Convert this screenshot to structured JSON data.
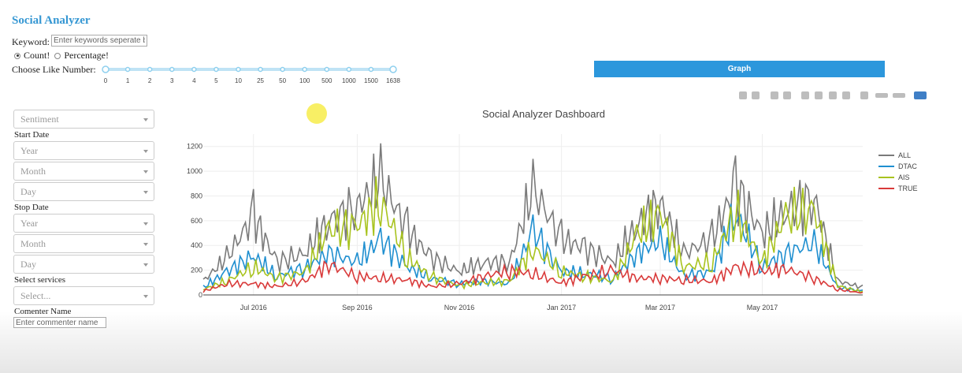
{
  "app": {
    "title": "Social Analyzer"
  },
  "keyword": {
    "label": "Keyword:",
    "placeholder": "Enter keywords seperate by"
  },
  "mode": {
    "options": [
      {
        "label": "Count!",
        "selected": true
      },
      {
        "label": "Percentage!",
        "selected": false
      }
    ]
  },
  "like": {
    "label": "Choose Like Number:",
    "ticks": [
      "0",
      "1",
      "2",
      "3",
      "4",
      "5",
      "10",
      "25",
      "50",
      "100",
      "500",
      "1000",
      "1500",
      "1638"
    ]
  },
  "graph_button": {
    "label": "Graph"
  },
  "filters": {
    "sentiment": "Sentiment",
    "start_label": "Start Date",
    "start_year": "Year",
    "start_month": "Month",
    "start_day": "Day",
    "stop_label": "Stop Date",
    "stop_year": "Year",
    "stop_month": "Month",
    "stop_day": "Day",
    "services_label": "Select services",
    "services_placeholder": "Select...",
    "commenter_label": "Comenter Name",
    "commenter_placeholder": "Enter commenter name"
  },
  "modebar": {
    "icons": [
      "camera-icon",
      "save-icon",
      "zoom-icon",
      "pan-icon",
      "zoom-in-icon",
      "zoom-out-icon",
      "autoscale-icon",
      "home-icon",
      "spike-icon",
      "hover-closest-icon",
      "hover-compare-icon",
      "plotly-logo-icon"
    ]
  },
  "chart_data": {
    "type": "line",
    "title": "Social Analyzer Dashboard",
    "x_start": "2016-06-01",
    "x_end": "2017-06-30",
    "x_tick_labels": [
      "Jul 2016",
      "Sep 2016",
      "Nov 2016",
      "Jan 2017",
      "Mar 2017",
      "May 2017"
    ],
    "x_tick_dates": [
      "2016-07-01",
      "2016-09-01",
      "2016-11-01",
      "2017-01-01",
      "2017-03-01",
      "2017-05-01"
    ],
    "ylim": [
      0,
      1300
    ],
    "y_ticks": [
      0,
      200,
      400,
      600,
      800,
      1000,
      1200
    ],
    "grid": true,
    "legend_position": "top-right",
    "x": [
      "2016-06-01",
      "2016-06-15",
      "2016-07-01",
      "2016-07-15",
      "2016-08-01",
      "2016-08-15",
      "2016-09-01",
      "2016-09-15",
      "2016-10-01",
      "2016-10-15",
      "2016-11-01",
      "2016-11-15",
      "2016-12-01",
      "2016-12-15",
      "2017-01-01",
      "2017-01-15",
      "2017-02-01",
      "2017-02-15",
      "2017-03-01",
      "2017-03-15",
      "2017-04-01",
      "2017-04-15",
      "2017-05-01",
      "2017-05-15",
      "2017-06-01",
      "2017-06-15",
      "2017-06-30"
    ],
    "series": [
      {
        "name": "ALL",
        "color": "#7a7a7a",
        "values": [
          150,
          400,
          850,
          350,
          450,
          800,
          950,
          1250,
          700,
          400,
          250,
          350,
          350,
          1150,
          600,
          500,
          350,
          750,
          1000,
          450,
          600,
          1180,
          650,
          900,
          1050,
          150,
          80
        ]
      },
      {
        "name": "DTAC",
        "color": "#1f8fd0",
        "values": [
          80,
          250,
          420,
          200,
          300,
          450,
          350,
          600,
          300,
          180,
          120,
          150,
          120,
          700,
          250,
          230,
          180,
          450,
          580,
          200,
          250,
          880,
          300,
          450,
          560,
          80,
          40
        ]
      },
      {
        "name": "AIS",
        "color": "#a8c31e",
        "values": [
          60,
          150,
          300,
          180,
          250,
          700,
          750,
          1000,
          400,
          200,
          100,
          130,
          150,
          500,
          250,
          200,
          150,
          650,
          880,
          300,
          350,
          900,
          350,
          850,
          900,
          100,
          30
        ]
      },
      {
        "name": "TRUE",
        "color": "#d93a3a",
        "values": [
          40,
          120,
          120,
          90,
          150,
          330,
          200,
          180,
          160,
          90,
          120,
          200,
          260,
          230,
          130,
          200,
          260,
          180,
          180,
          160,
          150,
          300,
          250,
          280,
          180,
          60,
          20
        ]
      }
    ]
  }
}
